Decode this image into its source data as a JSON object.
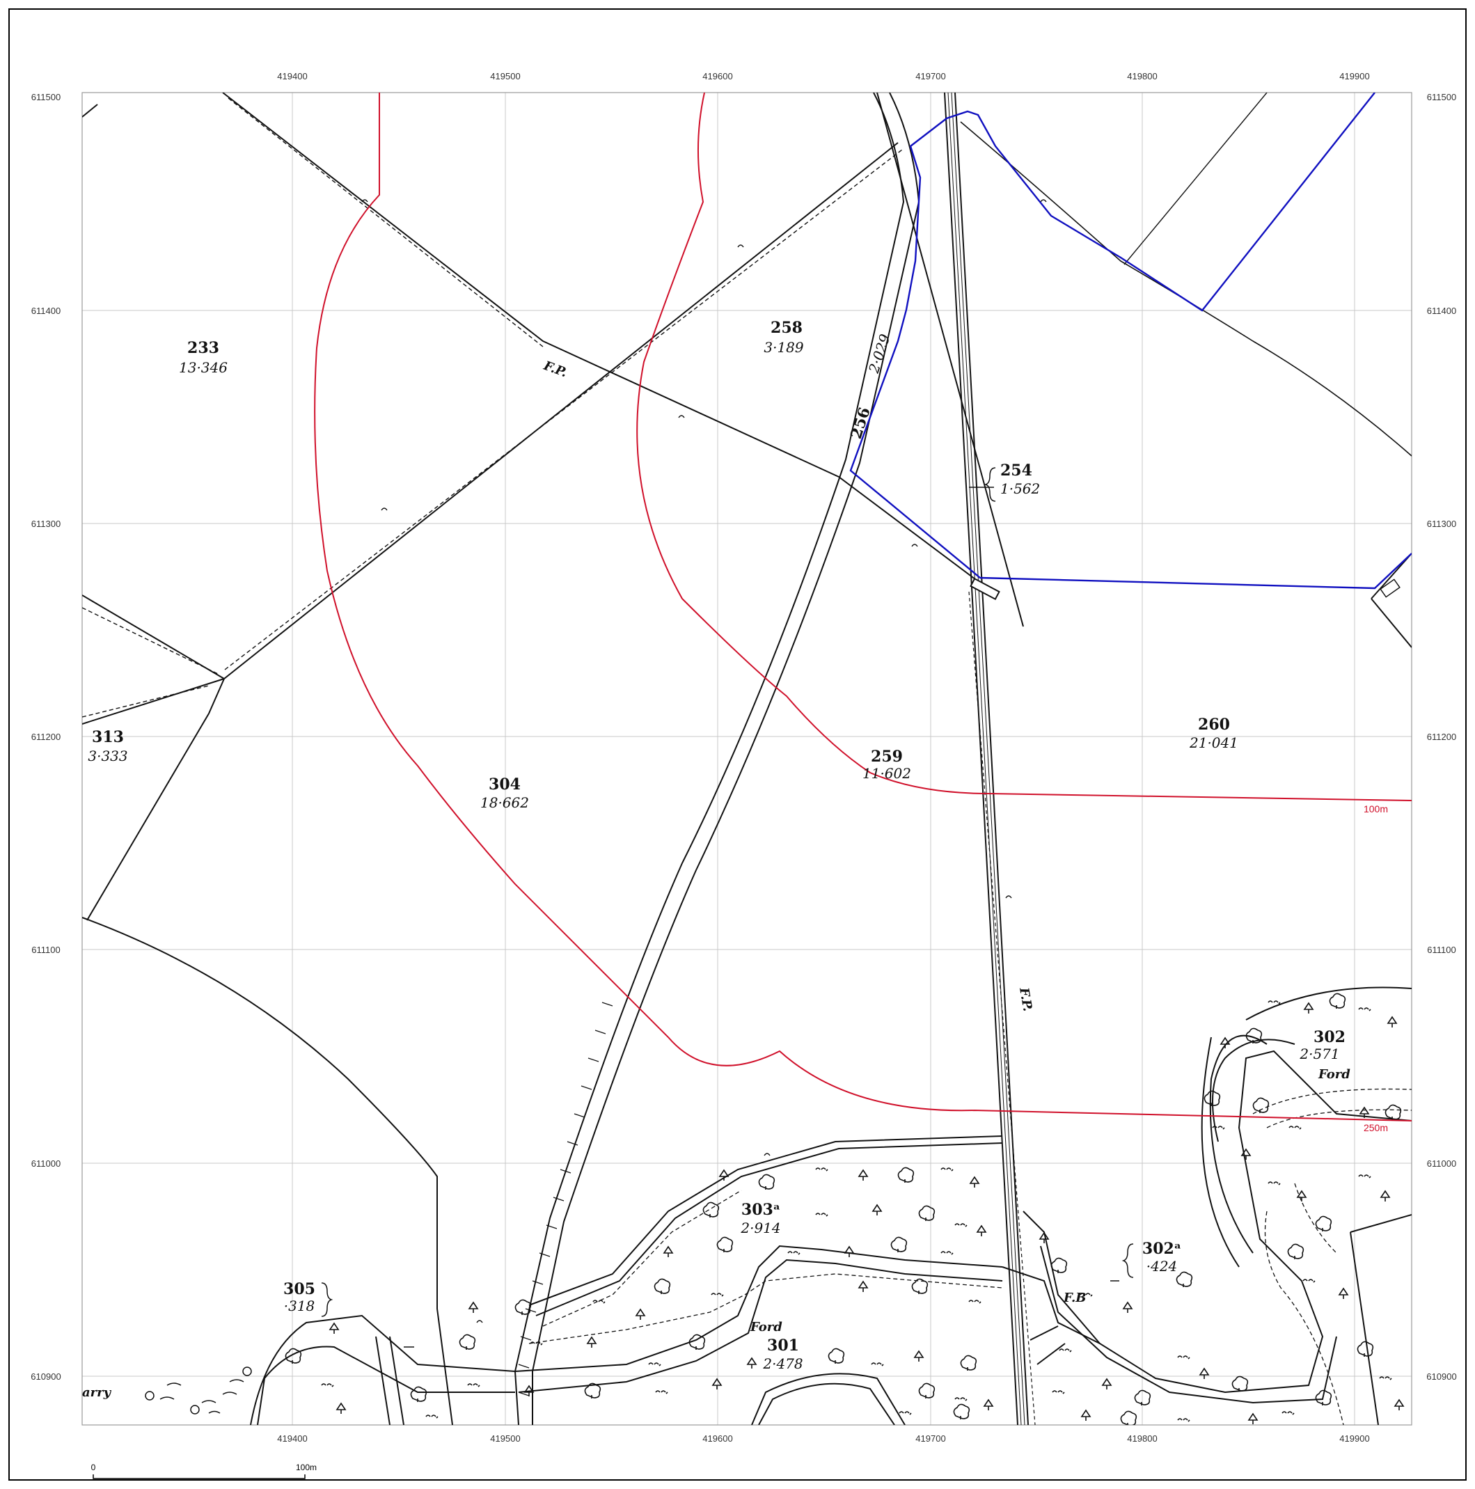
{
  "grid": {
    "eastings": [
      "419400",
      "419500",
      "419600",
      "419700",
      "419800",
      "419900"
    ],
    "northings": [
      "611500",
      "611400",
      "611300",
      "611200",
      "611100",
      "611000",
      "610900"
    ]
  },
  "parcels": [
    {
      "id": "p233",
      "number": "233",
      "area": "13·346"
    },
    {
      "id": "p258",
      "number": "258",
      "area": "3·189"
    },
    {
      "id": "p256",
      "number": "256",
      "area": "2·029"
    },
    {
      "id": "p254",
      "number": "254",
      "area": "1·562"
    },
    {
      "id": "p313",
      "number": "313",
      "area": "3·333"
    },
    {
      "id": "p304",
      "number": "304",
      "area": "18·662"
    },
    {
      "id": "p259",
      "number": "259",
      "area": "11·602"
    },
    {
      "id": "p260",
      "number": "260",
      "area": "21·041"
    },
    {
      "id": "p302",
      "number": "302",
      "area": "2·571"
    },
    {
      "id": "p303a",
      "number": "303ᵃ",
      "area": "2·914"
    },
    {
      "id": "p302a",
      "number": "302ᵃ",
      "area": "·424"
    },
    {
      "id": "p305",
      "number": "305",
      "area": "·318"
    },
    {
      "id": "p301",
      "number": "301",
      "area": "2·478"
    }
  ],
  "labels": {
    "fp_north": "F.P.",
    "fp_east": "F.P.",
    "ford_left": "Ford",
    "ford_right": "Ford",
    "fb": "F.B",
    "quarry": "arry"
  },
  "contours": {
    "label_100": "100m",
    "label_250": "250m",
    "color": "#d0102a"
  },
  "boundary_color": "#1010c0",
  "scale_bar": {
    "start": "0",
    "end": "100m"
  }
}
